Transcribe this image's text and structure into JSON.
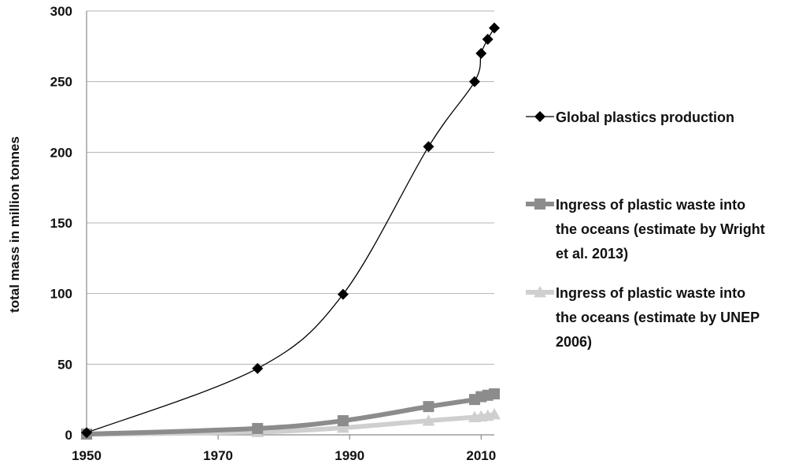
{
  "chart_data": {
    "type": "line",
    "title": "",
    "xlabel": "",
    "ylabel": "total mass in million tonnes",
    "xlim": [
      1950,
      2012
    ],
    "ylim": [
      0,
      300
    ],
    "x_ticks": [
      "1950",
      "1970",
      "1990",
      "2010"
    ],
    "y_ticks": [
      "0",
      "50",
      "100",
      "150",
      "200",
      "250",
      "300"
    ],
    "grid": "horizontal",
    "legend_position": "right",
    "series": [
      {
        "name": "Global plastics production",
        "color": "#000000",
        "marker": "diamond",
        "points": [
          {
            "x": 1950,
            "y": 1.5
          },
          {
            "x": 1976,
            "y": 47
          },
          {
            "x": 1989,
            "y": 99.5
          },
          {
            "x": 2002,
            "y": 204
          },
          {
            "x": 2009,
            "y": 250
          },
          {
            "x": 2010,
            "y": 270
          },
          {
            "x": 2011,
            "y": 280
          },
          {
            "x": 2012,
            "y": 288
          }
        ]
      },
      {
        "name": "Ingress of plastic waste into the oceans (estimate by Wright et al. 2013)",
        "legend_lines": [
          "Ingress of plastic waste into",
          "the oceans (estimate by Wright",
          "et al. 2013)"
        ],
        "color": "#8c8c8c",
        "marker": "square",
        "points": [
          {
            "x": 1950,
            "y": 0.5
          },
          {
            "x": 1976,
            "y": 4.5
          },
          {
            "x": 1989,
            "y": 10
          },
          {
            "x": 2002,
            "y": 20
          },
          {
            "x": 2009,
            "y": 25
          },
          {
            "x": 2010,
            "y": 27
          },
          {
            "x": 2011,
            "y": 28
          },
          {
            "x": 2012,
            "y": 29
          }
        ]
      },
      {
        "name": "Ingress of plastic waste into the oceans (estimate by UNEP 2006)",
        "legend_lines": [
          "Ingress of plastic waste into",
          "the oceans (estimate by UNEP",
          "2006)"
        ],
        "color": "#cfcfcf",
        "marker": "triangle",
        "points": [
          {
            "x": 1950,
            "y": 0.3
          },
          {
            "x": 1976,
            "y": 2
          },
          {
            "x": 1989,
            "y": 5
          },
          {
            "x": 2002,
            "y": 10
          },
          {
            "x": 2009,
            "y": 12.5
          },
          {
            "x": 2010,
            "y": 13
          },
          {
            "x": 2011,
            "y": 13.5
          },
          {
            "x": 2012,
            "y": 14.5
          }
        ]
      }
    ]
  }
}
